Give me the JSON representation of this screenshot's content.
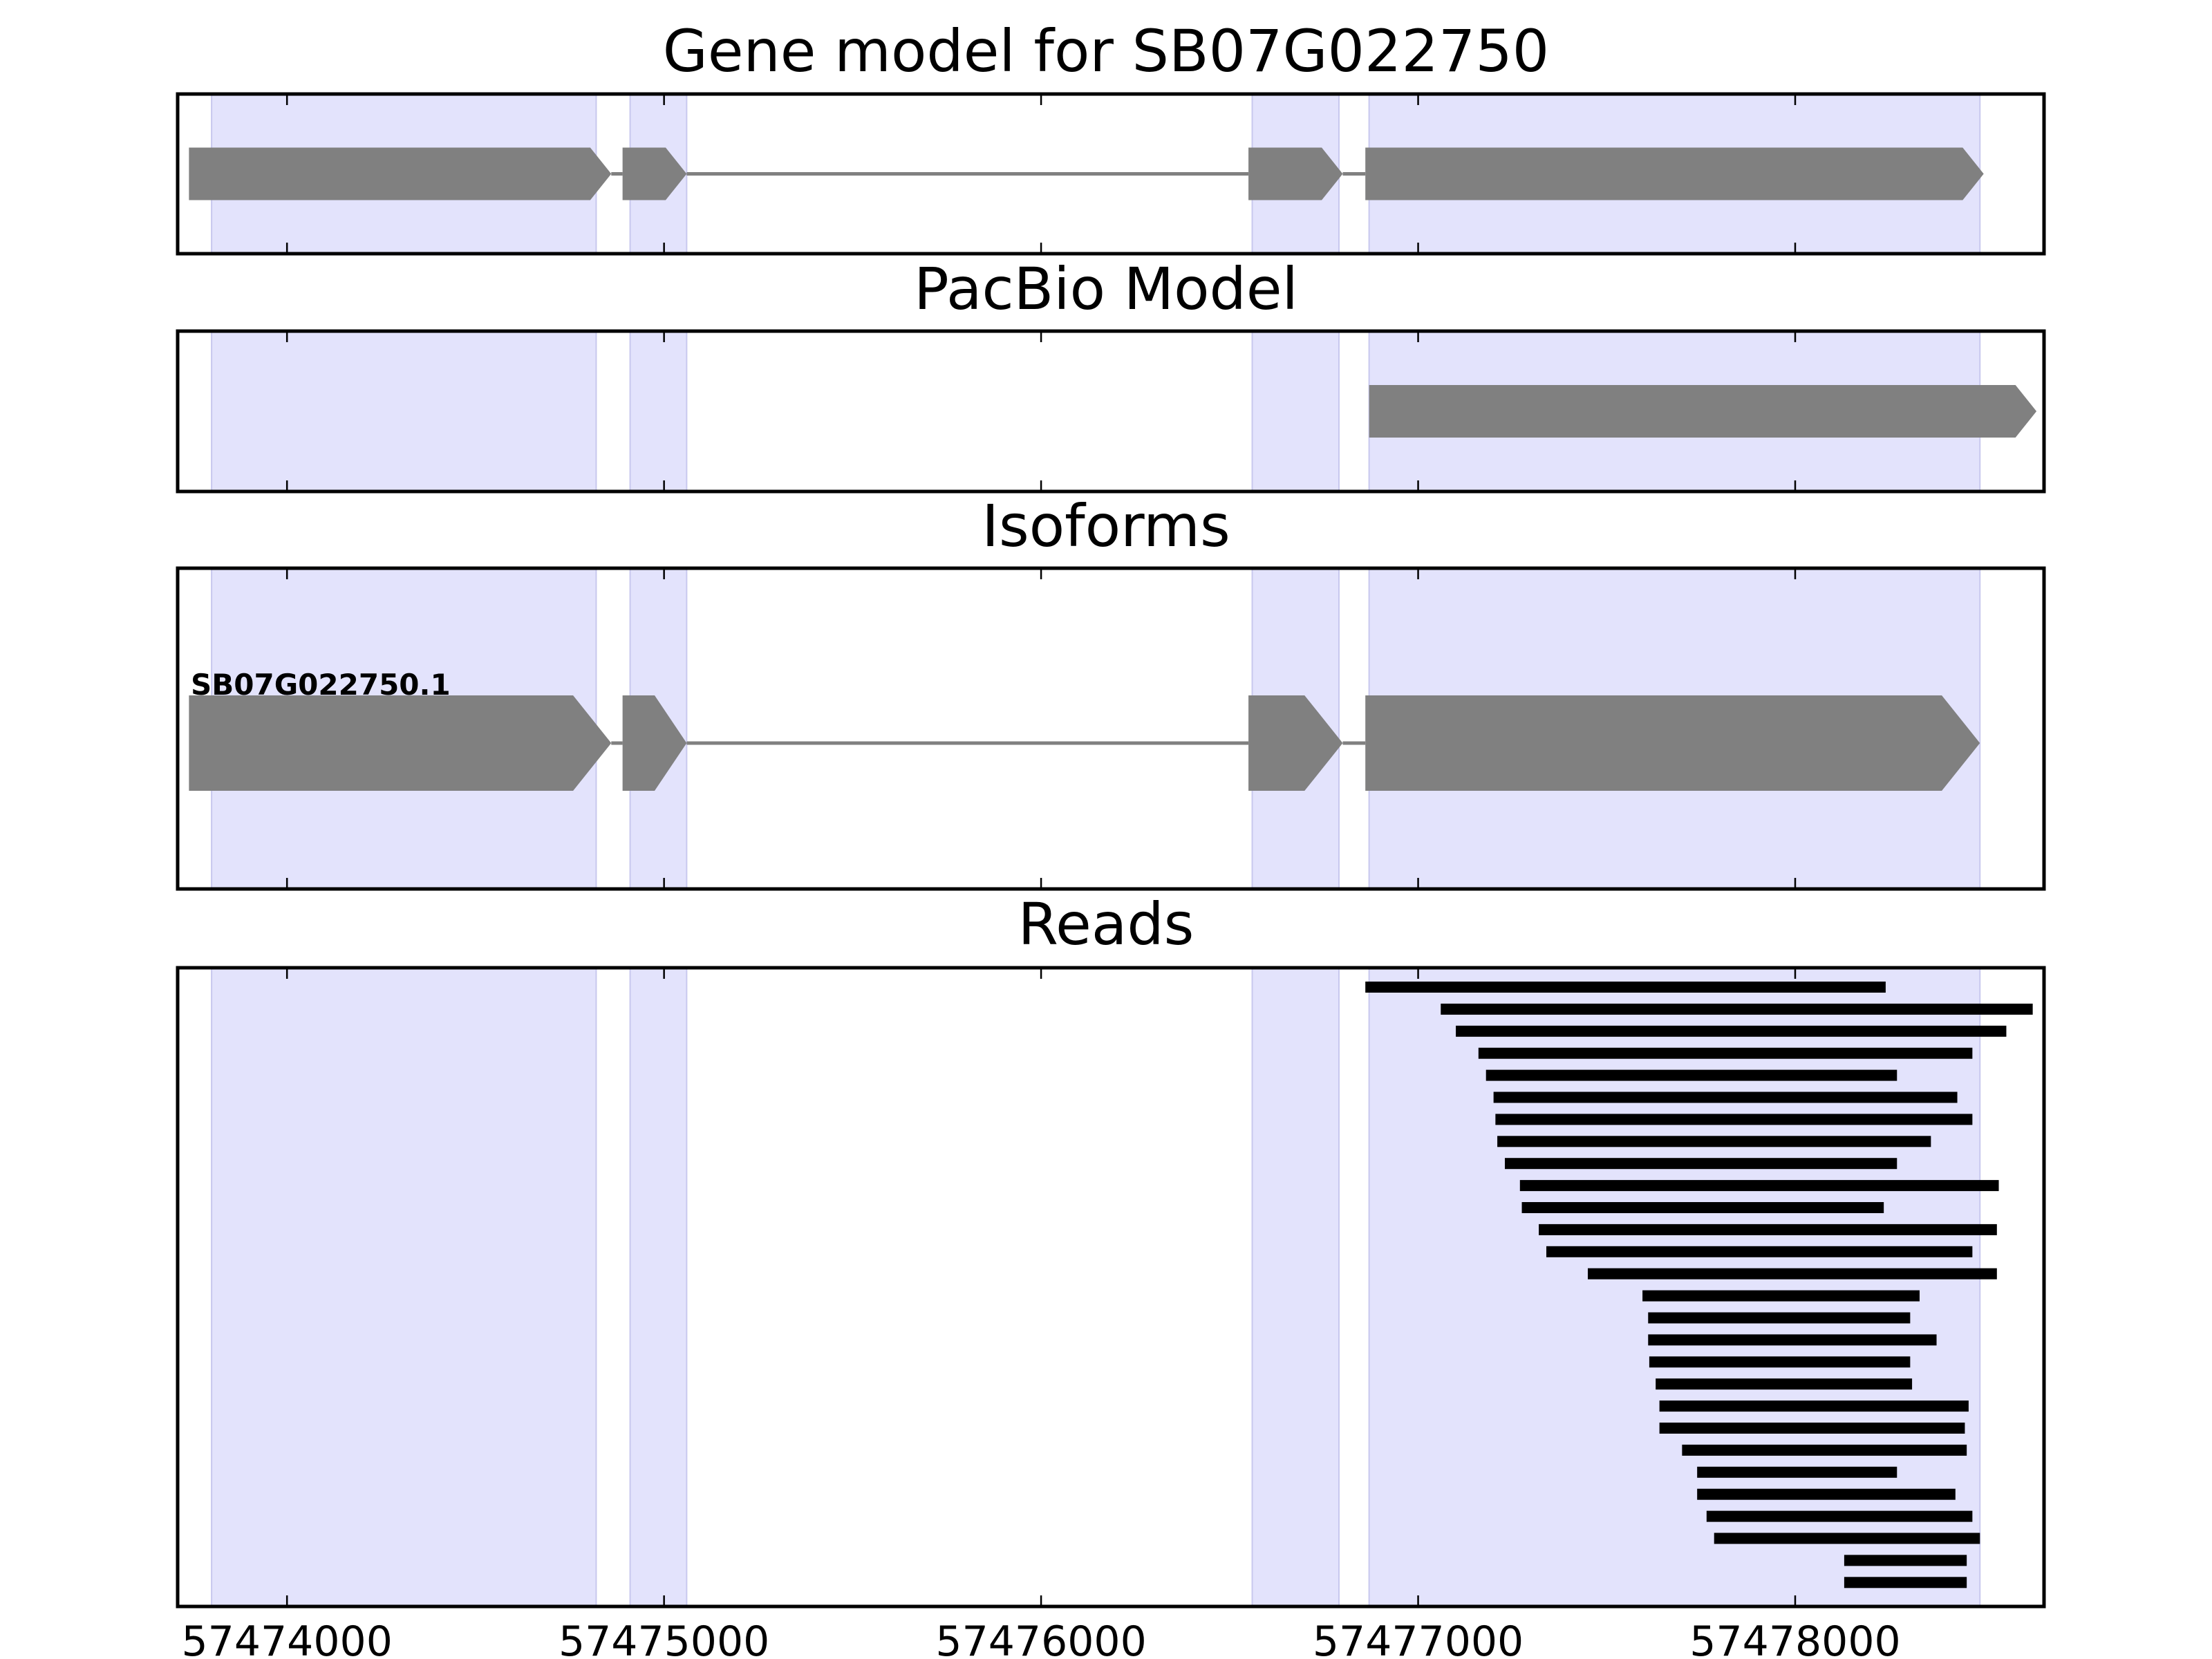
{
  "chart_data": {
    "type": "gene-track",
    "x_axis": {
      "xlim": [
        57473710,
        57478660
      ],
      "ticks": [
        57474000,
        57475000,
        57476000,
        57477000,
        57478000
      ],
      "tick_labels": [
        "57474000",
        "57475000",
        "57476000",
        "57477000",
        "57478000"
      ]
    },
    "colors": {
      "exon_fill": "#808080",
      "intron_line": "#808080",
      "highlight": "#e3e3fc",
      "highlight_edge": "#c8c8ee",
      "read": "#000000",
      "frame": "#000000"
    },
    "highlight_regions": [
      [
        57473800,
        57474820
      ],
      [
        57474910,
        57475060
      ],
      [
        57476560,
        57476790
      ],
      [
        57476870,
        57478490
      ]
    ],
    "panels": [
      {
        "title": "Gene model for SB07G022750",
        "type": "gene",
        "exons": [
          [
            57473740,
            57474860
          ],
          [
            57474890,
            57475060
          ],
          [
            57476550,
            57476800
          ],
          [
            57476860,
            57478500
          ]
        ],
        "strand": "+"
      },
      {
        "title": "PacBio Model",
        "type": "gene",
        "exons": [
          [
            57476870,
            57478640
          ]
        ],
        "strand": "+"
      },
      {
        "title": "Isoforms",
        "type": "isoforms",
        "isoforms": [
          {
            "name": "SB07G022750.1",
            "exons": [
              [
                57473740,
                57474860
              ],
              [
                57474890,
                57475060
              ],
              [
                57476550,
                57476800
              ],
              [
                57476860,
                57478490
              ]
            ]
          }
        ]
      },
      {
        "title": "Reads",
        "type": "reads",
        "reads": [
          [
            57476860,
            57478240
          ],
          [
            57477060,
            57478630
          ],
          [
            57477100,
            57478560
          ],
          [
            57477160,
            57478470
          ],
          [
            57477180,
            57478270
          ],
          [
            57477200,
            57478430
          ],
          [
            57477205,
            57478470
          ],
          [
            57477210,
            57478360
          ],
          [
            57477230,
            57478270
          ],
          [
            57477270,
            57478540
          ],
          [
            57477275,
            57478235
          ],
          [
            57477320,
            57478535
          ],
          [
            57477340,
            57478470
          ],
          [
            57477450,
            57478535
          ],
          [
            57477595,
            57478330
          ],
          [
            57477610,
            57478305
          ],
          [
            57477610,
            57478375
          ],
          [
            57477613,
            57478305
          ],
          [
            57477630,
            57478310
          ],
          [
            57477640,
            57478460
          ],
          [
            57477640,
            57478450
          ],
          [
            57477700,
            57478455
          ],
          [
            57477740,
            57478270
          ],
          [
            57477740,
            57478425
          ],
          [
            57477765,
            57478470
          ],
          [
            57477785,
            57478490
          ],
          [
            57478130,
            57478455
          ],
          [
            57478130,
            57478455
          ]
        ]
      }
    ]
  }
}
